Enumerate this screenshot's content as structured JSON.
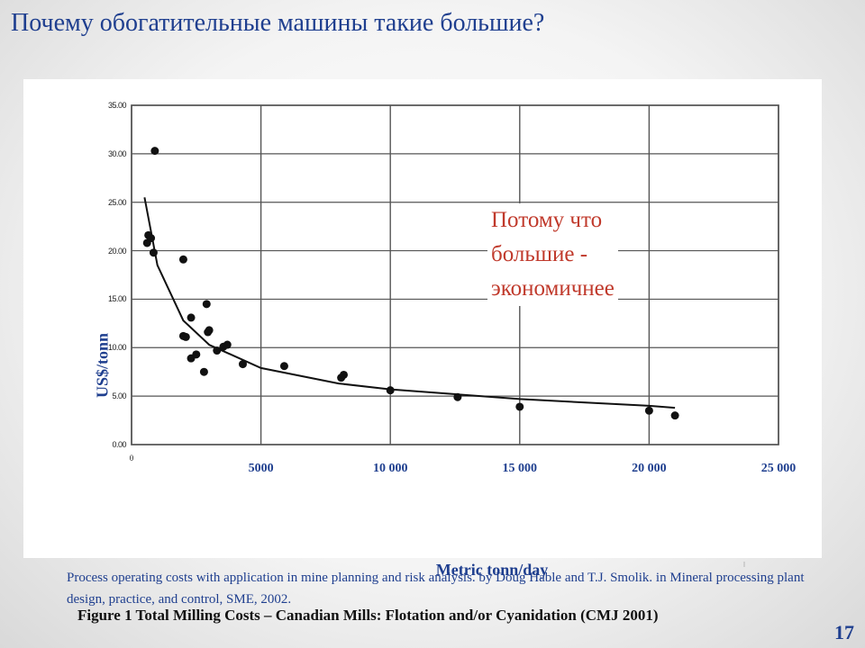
{
  "slide": {
    "title": "Почему обогатительные машины такие большие?",
    "annotation_lines": [
      "Потому что",
      "большие -",
      "экономичнее"
    ],
    "source": "Process operating costs with application in mine planning and risk analysis. by Doug Hable and T.J. Smolik. in Mineral processing plant design, practice, and control, SME, 2002.",
    "page_number": "17"
  },
  "colors": {
    "title": "#1f3f8f",
    "annotation": "#c0392b",
    "grid": "#555555",
    "points": "#111111"
  },
  "chart_data": {
    "type": "scatter",
    "title": "",
    "xlabel": "Metric tonn/day",
    "ylabel": "US$/tonn",
    "caption": "Figure 1 Total Milling Costs – Canadian Mills: Flotation and/or Cyanidation (CMJ 2001)",
    "xlim": [
      0,
      25000
    ],
    "ylim": [
      0,
      35
    ],
    "x_ticks": [
      {
        "value": 0,
        "label": "0"
      },
      {
        "value": 5000,
        "label": "5000"
      },
      {
        "value": 10000,
        "label": "10 000"
      },
      {
        "value": 15000,
        "label": "15 000"
      },
      {
        "value": 20000,
        "label": "20 000"
      },
      {
        "value": 25000,
        "label": "25 000"
      }
    ],
    "y_ticks": [
      {
        "value": 0,
        "label": "0.00"
      },
      {
        "value": 5,
        "label": "5.00"
      },
      {
        "value": 10,
        "label": "10.00"
      },
      {
        "value": 15,
        "label": "15.00"
      },
      {
        "value": 20,
        "label": "20.00"
      },
      {
        "value": 25,
        "label": "25.00"
      },
      {
        "value": 30,
        "label": "30.00"
      },
      {
        "value": 35,
        "label": "35.00"
      }
    ],
    "grid": true,
    "points": [
      {
        "x": 600,
        "y": 20.8
      },
      {
        "x": 650,
        "y": 21.6
      },
      {
        "x": 750,
        "y": 21.3
      },
      {
        "x": 850,
        "y": 19.8
      },
      {
        "x": 900,
        "y": 30.3
      },
      {
        "x": 2000,
        "y": 19.1
      },
      {
        "x": 2000,
        "y": 11.2
      },
      {
        "x": 2100,
        "y": 11.1
      },
      {
        "x": 2300,
        "y": 13.1
      },
      {
        "x": 2300,
        "y": 8.9
      },
      {
        "x": 2500,
        "y": 9.3
      },
      {
        "x": 2800,
        "y": 7.5
      },
      {
        "x": 2900,
        "y": 14.5
      },
      {
        "x": 2950,
        "y": 11.6
      },
      {
        "x": 3000,
        "y": 11.8
      },
      {
        "x": 3300,
        "y": 9.7
      },
      {
        "x": 3550,
        "y": 10.1
      },
      {
        "x": 3700,
        "y": 10.3
      },
      {
        "x": 4300,
        "y": 8.3
      },
      {
        "x": 5900,
        "y": 8.1
      },
      {
        "x": 8100,
        "y": 6.9
      },
      {
        "x": 8200,
        "y": 7.2
      },
      {
        "x": 10000,
        "y": 5.6
      },
      {
        "x": 12600,
        "y": 4.9
      },
      {
        "x": 15000,
        "y": 3.9
      },
      {
        "x": 20000,
        "y": 3.5
      },
      {
        "x": 21000,
        "y": 3.0
      }
    ],
    "trendline": {
      "type": "power",
      "x": [
        500,
        1000,
        2000,
        3000,
        5000,
        8000,
        10000,
        15000,
        20000,
        21000
      ],
      "y": [
        25.5,
        18.5,
        12.8,
        10.3,
        7.9,
        6.3,
        5.7,
        4.7,
        4.0,
        3.8
      ]
    }
  }
}
